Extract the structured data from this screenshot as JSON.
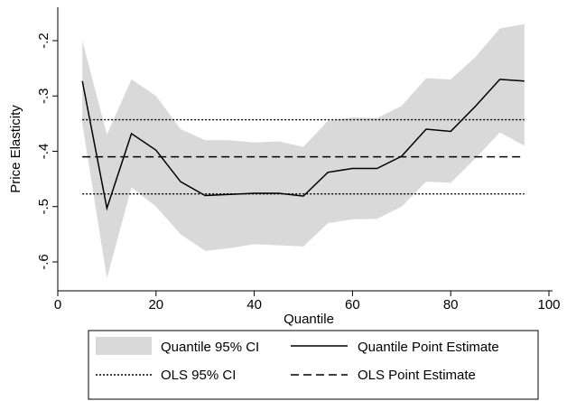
{
  "chart_data": {
    "type": "line",
    "xlabel": "Quantile",
    "ylabel": "Price Elasticity",
    "xlim": [
      0,
      100
    ],
    "ylim": [
      -0.65,
      -0.15
    ],
    "x_ticks": [
      0,
      20,
      40,
      60,
      80,
      100
    ],
    "y_ticks": [
      -0.6,
      -0.5,
      -0.4,
      -0.3,
      -0.2
    ],
    "x_tick_labels": [
      "0",
      "20",
      "40",
      "60",
      "80",
      "100"
    ],
    "y_tick_labels": [
      "-.6",
      "-.5",
      "-.4",
      "-.3",
      "-.2"
    ],
    "grid": false,
    "legend_position": "bottom",
    "x": [
      5,
      10,
      15,
      20,
      25,
      30,
      35,
      40,
      45,
      50,
      55,
      60,
      65,
      70,
      75,
      80,
      85,
      90,
      95
    ],
    "series": [
      {
        "name": "Quantile 95% CI",
        "style": "band",
        "lower": [
          -0.35,
          -0.63,
          -0.465,
          -0.5,
          -0.55,
          -0.58,
          -0.575,
          -0.568,
          -0.57,
          -0.572,
          -0.53,
          -0.523,
          -0.522,
          -0.5,
          -0.455,
          -0.457,
          -0.413,
          -0.366,
          -0.39
        ],
        "upper": [
          -0.2,
          -0.37,
          -0.27,
          -0.3,
          -0.36,
          -0.38,
          -0.38,
          -0.384,
          -0.382,
          -0.392,
          -0.345,
          -0.339,
          -0.34,
          -0.318,
          -0.268,
          -0.27,
          -0.23,
          -0.178,
          -0.17
        ]
      },
      {
        "name": "Quantile Point Estimate",
        "style": "solid",
        "values": [
          -0.273,
          -0.503,
          -0.368,
          -0.398,
          -0.455,
          -0.48,
          -0.478,
          -0.476,
          -0.476,
          -0.481,
          -0.438,
          -0.431,
          -0.431,
          -0.409,
          -0.36,
          -0.364,
          -0.319,
          -0.27,
          -0.273
        ]
      },
      {
        "name": "OLS 95% CI",
        "style": "dotted",
        "constants": [
          -0.343,
          -0.477
        ]
      },
      {
        "name": "OLS Point Estimate",
        "style": "dashed",
        "constant": -0.41
      }
    ]
  },
  "legend": {
    "items": [
      "Quantile 95% CI",
      "Quantile Point Estimate",
      "OLS 95% CI",
      "OLS Point Estimate"
    ]
  },
  "colors": {
    "band": "#d9d9d9",
    "line": "#000000",
    "axis": "#000000"
  }
}
